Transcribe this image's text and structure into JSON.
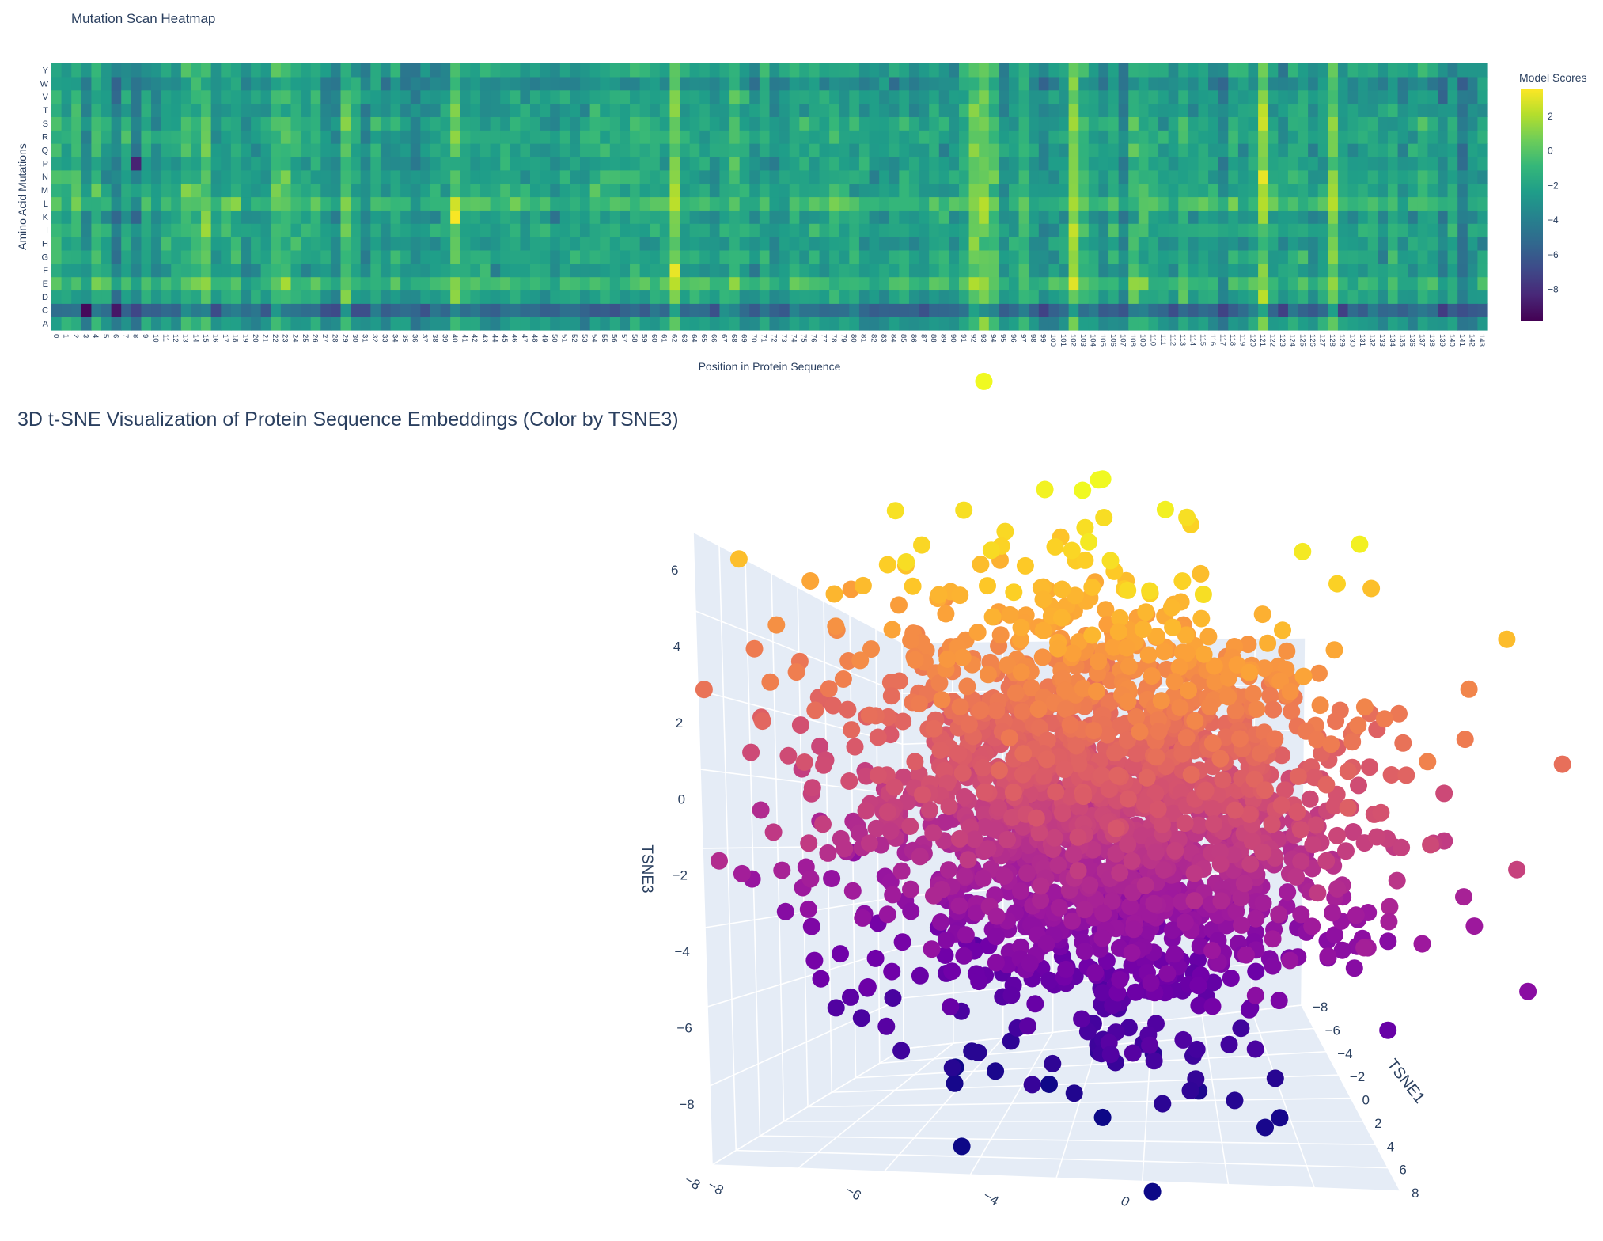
{
  "chart_data": [
    {
      "type": "heatmap",
      "title": "Mutation Scan Heatmap",
      "xlabel": "Position in Protein Sequence",
      "ylabel": "Amino Acid Mutations",
      "x": "0-143",
      "y_categories": [
        "A",
        "C",
        "D",
        "E",
        "F",
        "G",
        "H",
        "I",
        "K",
        "L",
        "M",
        "N",
        "P",
        "Q",
        "R",
        "S",
        "T",
        "V",
        "W",
        "Y"
      ],
      "colorbar": {
        "title": "Model Scores",
        "ticks": [
          2,
          0,
          -2,
          -4,
          -6,
          -8
        ],
        "tick_labels": [
          "2",
          "0",
          "−2",
          "−4",
          "−6",
          "−8"
        ],
        "range": [
          -9.8,
          3.6
        ],
        "colorscale": "viridis"
      },
      "mean_score": -2,
      "column_bias": {
        "14": 2.3,
        "15": 1.5,
        "22": 1.5,
        "23": 1.5,
        "29": 1.0,
        "40": 1.3,
        "62": 3.0,
        "92": 2.0,
        "93": 2.0,
        "102": 2.5,
        "121": 3.0,
        "128": 3.0,
        "3": -2.0,
        "6": -1.5,
        "8": -1.5,
        "36": -1.5,
        "37": -1.3,
        "107": -1.3,
        "141": -1.8,
        "142": -1.3
      },
      "row_bias": {
        "C": -3.0,
        "L": 1.2,
        "E": 1.0,
        "W": -1.0,
        "Y": -0.8,
        "P": -0.4
      },
      "hotspots": [
        {
          "position": 40,
          "mutation": "K",
          "value": 3.5
        },
        {
          "position": 3,
          "mutation": "C",
          "value": -9.5
        },
        {
          "position": 6,
          "mutation": "C",
          "value": -9.0
        },
        {
          "position": 8,
          "mutation": "P",
          "value": -8.5
        },
        {
          "position": 121,
          "mutation": "N",
          "value": 3.2
        },
        {
          "position": 102,
          "mutation": "E",
          "value": 3.0
        },
        {
          "position": 62,
          "mutation": "F",
          "value": 3.2
        }
      ]
    },
    {
      "type": "scatter3d",
      "title": "3D t-SNE Visualization of Protein Sequence Embeddings (Color by TSNE3)",
      "xlabel": "TSNE1",
      "zlabel": "TSNE3",
      "z_ticks": [
        "6",
        "4",
        "2",
        "0",
        "−2",
        "−4",
        "−6",
        "−8"
      ],
      "x_ticks": [
        "−8",
        "−6",
        "−4",
        "−2",
        "0",
        "2",
        "4",
        "6",
        "8"
      ],
      "y_ticks": [
        "−8",
        "−6",
        "−4",
        "0"
      ],
      "axis_range": [
        -8,
        8
      ],
      "colorscale": "plasma",
      "color_by": "TSNE3",
      "n_points": 2000,
      "spread": {
        "TSNE1": 2.5,
        "TSNE2": 2.5,
        "TSNE3": 1.9
      },
      "center": [
        0,
        0,
        0.8
      ]
    }
  ]
}
